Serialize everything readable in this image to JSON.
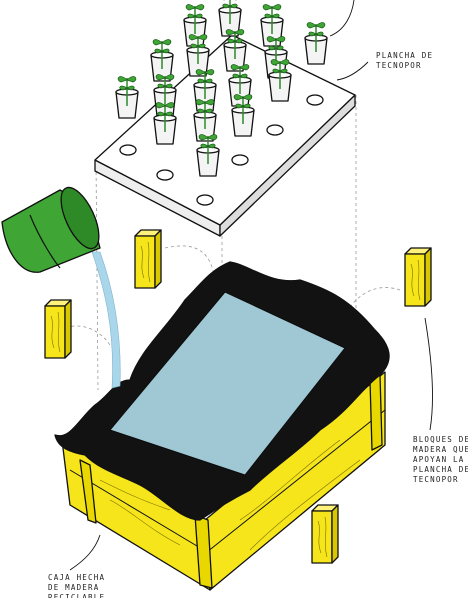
{
  "labels": [
    {
      "lines": [
        "PLANCHA DE",
        "TECNOPOR"
      ]
    },
    {
      "lines": [
        "BLOQUES DE",
        "MADERA QUE",
        "APOYAN LA",
        "PLANCHA DE",
        "TECNOPOR"
      ]
    },
    {
      "lines": [
        "CAJA HECHA",
        "DE MADERA",
        "RECICLABLE"
      ]
    }
  ]
}
